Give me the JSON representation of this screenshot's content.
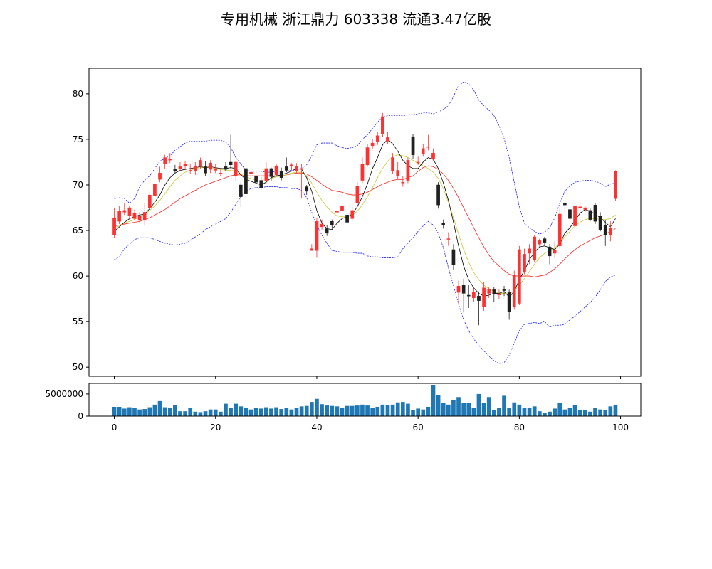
{
  "title": "专用机械 浙江鼎力 603338 流通3.47亿股",
  "chart_data": [
    {
      "type": "candlestick",
      "title": "专用机械 浙江鼎力 603338 流通3.47亿股",
      "x": [
        0,
        1,
        2,
        3,
        4,
        5,
        6,
        7,
        8,
        9,
        10,
        11,
        12,
        13,
        14,
        15,
        16,
        17,
        18,
        19,
        20,
        21,
        22,
        23,
        24,
        25,
        26,
        27,
        28,
        29,
        30,
        31,
        32,
        33,
        34,
        35,
        36,
        37,
        38,
        39,
        40,
        41,
        42,
        43,
        44,
        45,
        46,
        47,
        48,
        49,
        50,
        51,
        52,
        53,
        54,
        55,
        56,
        57,
        58,
        59,
        60,
        61,
        62,
        63,
        64,
        65,
        66,
        67,
        68,
        69,
        70,
        71,
        72,
        73,
        74,
        75,
        76,
        77,
        78,
        79,
        80,
        81,
        82,
        83,
        84,
        85,
        86,
        87,
        88,
        89,
        90,
        91,
        92,
        93,
        94,
        95,
        96,
        97,
        98,
        99
      ],
      "open": [
        64.5,
        66.0,
        67.0,
        66.6,
        66.3,
        66.1,
        66.1,
        67.5,
        68.8,
        70.6,
        72.3,
        72.8,
        71.7,
        71.8,
        72.1,
        71.6,
        71.5,
        72.1,
        72.0,
        71.7,
        71.6,
        71.3,
        72.0,
        72.5,
        71.0,
        70.0,
        71.8,
        71.2,
        71.0,
        70.5,
        70.5,
        71.8,
        71.1,
        71.5,
        72.0,
        72.1,
        71.5,
        71.7,
        69.8,
        62.8,
        62.8,
        65.4,
        65.2,
        66.0,
        67.0,
        67.2,
        66.7,
        66.3,
        68.0,
        70.5,
        72.2,
        74.3,
        74.7,
        75.6,
        74.8,
        71.5,
        71.0,
        70.2,
        70.5,
        75.3,
        72.4,
        73.4,
        74.2,
        72.9,
        70.0,
        65.8,
        64.1,
        62.9,
        58.2,
        59.0,
        57.9,
        57.6,
        57.8,
        56.6,
        58.1,
        58.5,
        58.0,
        58.5,
        58.2,
        56.6,
        57.0,
        60.5,
        62.5,
        61.8,
        63.5,
        64.1,
        63.2,
        62.5,
        63.3,
        68.0,
        67.3,
        65.5,
        67.5,
        67.3,
        67.2,
        67.8,
        66.6,
        65.6,
        64.5,
        68.5
      ],
      "close": [
        66.4,
        67.1,
        67.2,
        67.5,
        66.9,
        66.6,
        67.0,
        68.9,
        70.1,
        71.3,
        73.0,
        72.8,
        71.5,
        72.0,
        72.3,
        71.6,
        72.1,
        72.7,
        71.3,
        72.4,
        71.8,
        71.3,
        71.7,
        72.2,
        72.5,
        68.7,
        69.0,
        71.4,
        70.3,
        69.7,
        71.8,
        70.9,
        72.1,
        70.8,
        71.6,
        72.2,
        72.0,
        71.8,
        69.3,
        63.0,
        66.0,
        65.7,
        64.7,
        65.6,
        67.1,
        67.7,
        65.9,
        67.2,
        69.9,
        72.3,
        74.1,
        74.6,
        75.4,
        77.5,
        75.2,
        73.0,
        71.6,
        70.3,
        72.7,
        73.3,
        72.5,
        74.0,
        74.2,
        73.5,
        67.8,
        65.6,
        64.1,
        61.2,
        58.9,
        58.1,
        57.8,
        58.2,
        57.3,
        58.7,
        58.5,
        58.0,
        58.0,
        58.4,
        56.1,
        60.1,
        62.9,
        62.4,
        63.0,
        64.3,
        63.9,
        63.7,
        62.2,
        62.8,
        66.8,
        67.8,
        66.3,
        67.7,
        67.6,
        67.5,
        66.2,
        66.0,
        65.1,
        64.5,
        65.3,
        71.5
      ],
      "high": [
        67.5,
        67.7,
        68.0,
        67.7,
        67.3,
        67.0,
        68.0,
        69.4,
        70.5,
        72.0,
        73.3,
        73.5,
        72.2,
        72.5,
        72.6,
        72.3,
        72.5,
        73.0,
        72.6,
        72.7,
        72.3,
        71.7,
        72.5,
        75.5,
        72.6,
        70.3,
        72.0,
        72.0,
        71.6,
        70.9,
        72.5,
        71.9,
        72.3,
        71.9,
        73.0,
        72.4,
        72.4,
        72.3,
        70.0,
        63.5,
        66.4,
        66.2,
        65.6,
        66.2,
        67.5,
        68.0,
        67.2,
        67.6,
        70.3,
        73.0,
        74.5,
        75.0,
        75.8,
        77.9,
        75.8,
        73.5,
        72.5,
        71.0,
        73.0,
        75.6,
        73.1,
        74.5,
        75.5,
        74.0,
        70.3,
        66.2,
        64.8,
        63.5,
        59.5,
        59.7,
        59.0,
        58.7,
        58.3,
        59.3,
        58.8,
        58.8,
        58.5,
        58.9,
        58.5,
        60.6,
        63.3,
        63.0,
        63.5,
        64.5,
        64.1,
        64.3,
        63.5,
        63.8,
        67.4,
        68.1,
        67.5,
        68.4,
        68.2,
        67.7,
        67.5,
        68.0,
        67.0,
        66.1,
        66.0,
        71.6
      ],
      "low": [
        64.2,
        65.7,
        66.7,
        66.2,
        66.1,
        65.9,
        65.6,
        67.3,
        68.5,
        70.3,
        71.8,
        72.4,
        71.2,
        71.5,
        71.8,
        71.2,
        71.1,
        71.8,
        71.0,
        71.3,
        71.3,
        71.0,
        71.5,
        71.8,
        70.4,
        67.6,
        68.8,
        70.9,
        70.0,
        69.5,
        70.2,
        70.4,
        70.9,
        70.5,
        71.4,
        71.6,
        71.3,
        68.5,
        68.9,
        62.8,
        62.0,
        65.1,
        64.4,
        65.2,
        66.8,
        67.0,
        65.7,
        66.0,
        67.6,
        70.2,
        72.0,
        74.0,
        74.4,
        75.3,
        74.5,
        71.2,
        70.7,
        69.8,
        70.2,
        72.9,
        72.2,
        73.1,
        73.8,
        72.6,
        67.4,
        65.2,
        63.3,
        60.7,
        57.0,
        56.0,
        56.5,
        57.2,
        54.6,
        56.2,
        57.6,
        57.2,
        57.5,
        57.8,
        55.2,
        56.3,
        56.8,
        60.2,
        61.3,
        61.5,
        63.2,
        63.4,
        61.3,
        62.0,
        63.0,
        66.9,
        65.3,
        65.2,
        67.0,
        67.0,
        66.0,
        65.7,
        64.9,
        63.3,
        63.8,
        68.2
      ],
      "ma_short": [
        64.9,
        65.4,
        65.9,
        66.3,
        66.5,
        66.7,
        66.8,
        67.4,
        68.1,
        68.9,
        70.0,
        70.8,
        71.3,
        71.6,
        71.7,
        71.8,
        71.9,
        72.0,
        71.9,
        72.0,
        71.9,
        71.8,
        71.8,
        71.9,
        71.8,
        71.1,
        70.6,
        70.4,
        70.2,
        70.0,
        70.3,
        70.8,
        71.0,
        71.1,
        71.3,
        71.5,
        71.8,
        71.7,
        70.8,
        69.3,
        67.2,
        65.8,
        65.2,
        65.1,
        65.8,
        66.3,
        66.5,
        66.8,
        67.6,
        68.7,
        70.1,
        71.8,
        73.0,
        74.4,
        75.0,
        74.5,
        73.7,
        72.7,
        72.1,
        71.8,
        71.8,
        72.5,
        73.0,
        72.8,
        71.8,
        70.2,
        68.3,
        65.9,
        63.3,
        61.1,
        59.6,
        58.7,
        58.1,
        57.8,
        57.9,
        58.1,
        58.1,
        58.3,
        57.7,
        58.3,
        59.6,
        60.6,
        61.8,
        62.6,
        63.2,
        63.3,
        63.1,
        62.9,
        63.5,
        64.7,
        65.3,
        66.1,
        66.9,
        67.3,
        67.1,
        66.8,
        66.4,
        65.9,
        65.4,
        66.3
      ],
      "ma_mid": [
        65.3,
        65.5,
        65.8,
        66.0,
        66.2,
        66.5,
        66.8,
        67.2,
        67.7,
        68.3,
        69.0,
        69.8,
        70.5,
        71.0,
        71.4,
        71.6,
        71.8,
        71.9,
        71.9,
        71.9,
        71.8,
        71.7,
        71.6,
        71.6,
        71.5,
        71.2,
        70.9,
        70.7,
        70.5,
        70.4,
        70.5,
        70.7,
        70.9,
        71.0,
        71.1,
        71.3,
        71.4,
        71.4,
        71.0,
        70.2,
        69.2,
        68.3,
        67.6,
        67.0,
        66.6,
        66.5,
        66.5,
        66.7,
        67.1,
        67.8,
        68.7,
        69.7,
        70.8,
        71.8,
        72.6,
        73.1,
        73.3,
        73.2,
        73.0,
        72.7,
        72.4,
        72.1,
        71.8,
        71.4,
        70.7,
        69.6,
        68.1,
        66.4,
        64.6,
        62.9,
        61.5,
        60.4,
        59.6,
        59.0,
        58.6,
        58.3,
        58.1,
        58.1,
        58.0,
        58.4,
        59.0,
        59.7,
        60.5,
        61.3,
        62.0,
        62.5,
        62.8,
        63.1,
        63.6,
        64.3,
        64.9,
        65.5,
        65.9,
        66.2,
        66.3,
        66.3,
        66.2,
        66.2,
        66.3,
        66.7
      ],
      "ma_long": [
        65.5,
        65.6,
        65.7,
        65.8,
        65.9,
        66.0,
        66.2,
        66.4,
        66.7,
        67.0,
        67.3,
        67.7,
        68.1,
        68.5,
        68.8,
        69.1,
        69.4,
        69.7,
        70.0,
        70.2,
        70.4,
        70.6,
        70.8,
        71.0,
        71.1,
        71.1,
        71.0,
        71.0,
        71.0,
        71.0,
        71.0,
        71.0,
        71.0,
        71.0,
        71.1,
        71.2,
        71.3,
        71.3,
        71.2,
        70.9,
        70.5,
        70.1,
        69.7,
        69.4,
        69.3,
        69.2,
        69.0,
        68.9,
        68.9,
        69.0,
        69.2,
        69.5,
        69.8,
        70.1,
        70.3,
        70.5,
        70.6,
        70.6,
        70.8,
        71.0,
        71.5,
        71.9,
        72.1,
        72.0,
        71.7,
        71.2,
        70.5,
        69.6,
        68.6,
        67.5,
        66.4,
        65.3,
        64.2,
        63.2,
        62.3,
        61.6,
        61.1,
        60.6,
        60.2,
        60.0,
        60.0,
        60.0,
        60.0,
        59.9,
        60.0,
        60.1,
        60.4,
        60.8,
        61.3,
        61.9,
        62.4,
        62.9,
        63.3,
        63.6,
        63.9,
        64.2,
        64.4,
        64.6,
        64.9,
        65.2
      ],
      "boll_upper": [
        68.5,
        68.6,
        68.5,
        68.0,
        68.5,
        69.8,
        70.5,
        71.0,
        71.8,
        72.6,
        72.9,
        73.2,
        73.8,
        74.2,
        74.6,
        74.8,
        74.8,
        74.8,
        74.8,
        74.9,
        74.9,
        74.9,
        74.7,
        74.1,
        73.0,
        72.3,
        71.6,
        71.5,
        71.5,
        71.5,
        71.4,
        71.4,
        71.5,
        71.5,
        71.5,
        71.6,
        71.7,
        71.8,
        72.2,
        73.2,
        74.4,
        74.6,
        74.6,
        74.6,
        74.3,
        74.1,
        74.0,
        74.1,
        74.3,
        75.0,
        75.5,
        76.2,
        76.9,
        77.4,
        77.6,
        77.6,
        77.6,
        77.6,
        77.7,
        77.7,
        77.8,
        77.9,
        77.9,
        77.8,
        78.0,
        78.3,
        78.7,
        79.7,
        80.9,
        81.3,
        81.1,
        80.4,
        79.3,
        78.7,
        78.2,
        77.6,
        76.5,
        75.1,
        73.0,
        70.3,
        67.6,
        65.8,
        65.3,
        64.9,
        64.6,
        64.8,
        65.3,
        66.4,
        68.0,
        69.3,
        69.9,
        70.3,
        70.4,
        70.5,
        70.5,
        70.4,
        70.2,
        69.8,
        70.1,
        70.2
      ],
      "boll_lower": [
        61.8,
        62.1,
        63.0,
        63.5,
        64.0,
        64.2,
        64.2,
        64.2,
        64.0,
        63.8,
        63.6,
        63.5,
        63.4,
        63.5,
        63.6,
        63.9,
        64.3,
        64.6,
        65.1,
        65.4,
        65.7,
        66.0,
        66.3,
        67.0,
        67.9,
        68.7,
        69.3,
        69.6,
        69.7,
        69.7,
        69.8,
        69.8,
        69.8,
        69.7,
        69.7,
        69.6,
        69.6,
        69.4,
        68.6,
        67.0,
        65.6,
        64.5,
        63.6,
        62.8,
        62.7,
        62.6,
        62.6,
        62.6,
        62.5,
        62.5,
        62.2,
        62.1,
        62.1,
        62.0,
        62.0,
        62.0,
        62.1,
        63.0,
        63.6,
        64.2,
        64.9,
        65.5,
        66.0,
        65.6,
        64.7,
        63.1,
        60.9,
        58.9,
        56.9,
        55.2,
        54.0,
        53.1,
        52.4,
        51.8,
        51.2,
        50.7,
        50.4,
        50.5,
        51.3,
        52.6,
        54.0,
        54.7,
        54.8,
        54.9,
        54.8,
        55.0,
        54.4,
        54.6,
        54.6,
        54.7,
        55.2,
        55.6,
        56.1,
        56.6,
        57.1,
        57.7,
        58.5,
        59.4,
        59.9,
        60.1
      ],
      "ylim": [
        49,
        82.8
      ],
      "xlim": [
        -5,
        104
      ],
      "yticks": [
        "50",
        "55",
        "60",
        "65",
        "70",
        "75",
        "80"
      ],
      "xticks": [
        "0",
        "20",
        "40",
        "60",
        "80",
        "100"
      ],
      "colors": {
        "up": "#ff3030",
        "down": "#202020",
        "ma_short": "#000000",
        "ma_mid": "#c8c832",
        "ma_long": "#ff2020",
        "boll": "#2020ff"
      }
    },
    {
      "type": "bar",
      "categories": [
        0,
        1,
        2,
        3,
        4,
        5,
        6,
        7,
        8,
        9,
        10,
        11,
        12,
        13,
        14,
        15,
        16,
        17,
        18,
        19,
        20,
        21,
        22,
        23,
        24,
        25,
        26,
        27,
        28,
        29,
        30,
        31,
        32,
        33,
        34,
        35,
        36,
        37,
        38,
        39,
        40,
        41,
        42,
        43,
        44,
        45,
        46,
        47,
        48,
        49,
        50,
        51,
        52,
        53,
        54,
        55,
        56,
        57,
        58,
        59,
        60,
        61,
        62,
        63,
        64,
        65,
        66,
        67,
        68,
        69,
        70,
        71,
        72,
        73,
        74,
        75,
        76,
        77,
        78,
        79,
        80,
        81,
        82,
        83,
        84,
        85,
        86,
        87,
        88,
        89,
        90,
        91,
        92,
        93,
        94,
        95,
        96,
        97,
        98,
        99
      ],
      "values": [
        2100000,
        2100000,
        1700000,
        2000000,
        1900000,
        1500000,
        1600000,
        2000000,
        2600000,
        3400000,
        2000000,
        1800000,
        2500000,
        1100000,
        1100000,
        1800000,
        1000000,
        900000,
        1100000,
        1500000,
        1500000,
        1000000,
        2800000,
        1800000,
        2800000,
        2200000,
        1800000,
        1500000,
        1800000,
        1700000,
        2000000,
        1700000,
        2000000,
        1600000,
        1800000,
        1500000,
        1900000,
        2200000,
        2300000,
        3200000,
        3900000,
        2700000,
        2400000,
        2300000,
        2200000,
        1800000,
        2300000,
        2300000,
        2400000,
        2600000,
        2400000,
        1900000,
        2100000,
        2600000,
        2500000,
        2600000,
        3100000,
        3200000,
        2800000,
        1400000,
        1700000,
        1500000,
        2100000,
        7000000,
        4700000,
        2900000,
        2600000,
        3600000,
        4300000,
        3000000,
        3000000,
        1900000,
        5000000,
        2900000,
        4300000,
        1400000,
        1800000,
        4600000,
        1900000,
        3100000,
        2600000,
        1900000,
        1800000,
        2200000,
        1100000,
        800000,
        1000000,
        1700000,
        3000000,
        1500000,
        1800000,
        2500000,
        1300000,
        1300000,
        1000000,
        1800000,
        1500000,
        1300000,
        2200000,
        2500000
      ],
      "ylim": [
        0,
        7400000
      ],
      "yticks": [
        "0",
        "5000000"
      ],
      "xticks": [
        "0",
        "20",
        "40",
        "60",
        "80",
        "100"
      ],
      "color": "#1f77b4"
    }
  ]
}
